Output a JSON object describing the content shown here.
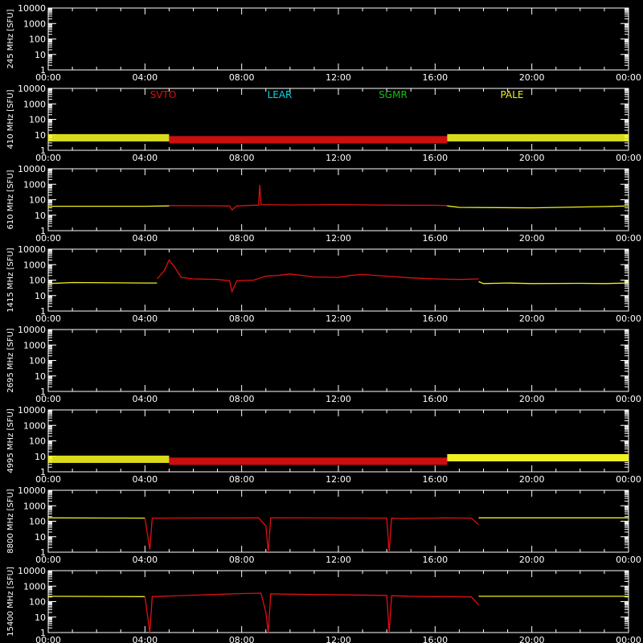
{
  "colors": {
    "background": "#000000",
    "axes": "#ffffff",
    "svto": "#e01010",
    "lear": "#00d8e0",
    "sgmr": "#10c010",
    "pale": "#f0f020"
  },
  "chart_data": {
    "type": "line",
    "time_ticks": [
      "00:00",
      "04:00",
      "08:00",
      "12:00",
      "16:00",
      "20:00",
      "00:00"
    ],
    "x_range_hours": [
      0,
      24
    ],
    "y_scale": "log",
    "y_range": [
      1,
      10000
    ],
    "y_ticks": [
      "1",
      "10",
      "100",
      "1000",
      "10000"
    ],
    "station_legend": [
      {
        "name": "SVTO",
        "color": "#e01010"
      },
      {
        "name": "LEAR",
        "color": "#00d8e0"
      },
      {
        "name": "SGMR",
        "color": "#10c010"
      },
      {
        "name": "PALE",
        "color": "#f0f020"
      }
    ],
    "panels": [
      {
        "ylabel": "245 MHz [SFU]",
        "series": []
      },
      {
        "ylabel": "410 MHz [SFU]",
        "series": [
          {
            "station": "PALE",
            "band": true,
            "points": [
              [
                0,
                4
              ],
              [
                5,
                4
              ]
            ]
          },
          {
            "station": "SVTO",
            "band": true,
            "points": [
              [
                5,
                3
              ],
              [
                16.5,
                3
              ]
            ]
          },
          {
            "station": "PALE",
            "band": true,
            "points": [
              [
                16.5,
                4
              ],
              [
                24,
                4
              ]
            ]
          }
        ]
      },
      {
        "ylabel": "610 MHz [SFU]",
        "series": [
          {
            "station": "PALE",
            "points": [
              [
                0,
                38
              ],
              [
                4,
                38
              ],
              [
                5,
                40
              ]
            ]
          },
          {
            "station": "SVTO",
            "points": [
              [
                5,
                42
              ],
              [
                7.5,
                40
              ],
              [
                7.6,
                22
              ],
              [
                7.8,
                40
              ],
              [
                8.7,
                45
              ],
              [
                8.75,
                900
              ],
              [
                8.8,
                48
              ],
              [
                10,
                46
              ],
              [
                12,
                48
              ],
              [
                14,
                45
              ],
              [
                16,
                44
              ],
              [
                16.5,
                42
              ]
            ]
          },
          {
            "station": "PALE",
            "points": [
              [
                16.5,
                40
              ],
              [
                17,
                32
              ],
              [
                20,
                30
              ],
              [
                23,
                36
              ],
              [
                24,
                40
              ]
            ]
          }
        ]
      },
      {
        "ylabel": "1415 MHz [SFU]",
        "series": [
          {
            "station": "PALE",
            "points": [
              [
                0,
                60
              ],
              [
                1,
                70
              ],
              [
                4,
                65
              ],
              [
                4.5,
                65
              ]
            ]
          },
          {
            "station": "SVTO",
            "points": [
              [
                4.5,
                120
              ],
              [
                4.8,
                400
              ],
              [
                5,
                2000
              ],
              [
                5.2,
                800
              ],
              [
                5.5,
                150
              ],
              [
                6,
                120
              ],
              [
                7,
                110
              ],
              [
                7.5,
                90
              ],
              [
                7.6,
                18
              ],
              [
                7.8,
                90
              ],
              [
                8.5,
                100
              ],
              [
                9,
                180
              ],
              [
                9.5,
                200
              ],
              [
                10,
                250
              ],
              [
                11,
                160
              ],
              [
                12,
                150
              ],
              [
                12.5,
                200
              ],
              [
                13,
                230
              ],
              [
                14,
                180
              ],
              [
                15,
                140
              ],
              [
                16,
                120
              ],
              [
                17,
                110
              ],
              [
                17.8,
                120
              ]
            ]
          },
          {
            "station": "PALE",
            "points": [
              [
                17.8,
                80
              ],
              [
                18,
                60
              ],
              [
                19,
                65
              ],
              [
                20,
                60
              ],
              [
                22,
                62
              ],
              [
                23,
                60
              ],
              [
                24,
                65
              ]
            ]
          }
        ]
      },
      {
        "ylabel": "2695 MHz [SFU]",
        "series": []
      },
      {
        "ylabel": "4995 MHz [SFU]",
        "series": [
          {
            "station": "PALE",
            "band": true,
            "points": [
              [
                0,
                4
              ],
              [
                5,
                4
              ]
            ]
          },
          {
            "station": "SVTO",
            "band": true,
            "points": [
              [
                5,
                3
              ],
              [
                16.5,
                3
              ]
            ]
          },
          {
            "station": "PALE",
            "band": true,
            "points": [
              [
                16.5,
                5
              ],
              [
                24,
                5
              ]
            ]
          }
        ]
      },
      {
        "ylabel": "8800 MHz [SFU]",
        "series": [
          {
            "station": "PALE",
            "points": [
              [
                0,
                165
              ],
              [
                4,
                160
              ]
            ]
          },
          {
            "station": "SVTO",
            "points": [
              [
                4,
                160
              ],
              [
                4.2,
                1.5
              ],
              [
                4.3,
                160
              ],
              [
                8.7,
                165
              ],
              [
                9,
                50
              ],
              [
                9.1,
                1
              ],
              [
                9.2,
                165
              ],
              [
                14,
                160
              ],
              [
                14.1,
                1
              ],
              [
                14.2,
                160
              ],
              [
                14.5,
                150
              ],
              [
                16,
                160
              ],
              [
                16.3,
                165
              ],
              [
                17.5,
                160
              ],
              [
                17.8,
                60
              ]
            ]
          },
          {
            "station": "PALE",
            "points": [
              [
                17.8,
                165
              ],
              [
                24,
                165
              ]
            ]
          }
        ]
      },
      {
        "ylabel": "15400 MHz [SFU]",
        "series": [
          {
            "station": "PALE",
            "points": [
              [
                0,
                220
              ],
              [
                4,
                210
              ]
            ]
          },
          {
            "station": "SVTO",
            "points": [
              [
                4,
                210
              ],
              [
                4.2,
                1
              ],
              [
                4.3,
                210
              ],
              [
                5,
                230
              ],
              [
                6,
                260
              ],
              [
                8,
                330
              ],
              [
                8.8,
                350
              ],
              [
                9,
                20
              ],
              [
                9.1,
                1
              ],
              [
                9.2,
                320
              ],
              [
                10,
                300
              ],
              [
                14,
                250
              ],
              [
                14.1,
                1
              ],
              [
                14.2,
                240
              ],
              [
                15,
                220
              ],
              [
                16,
                210
              ],
              [
                16.3,
                215
              ],
              [
                17.5,
                200
              ],
              [
                17.8,
                60
              ]
            ]
          },
          {
            "station": "PALE",
            "points": [
              [
                17.8,
                220
              ],
              [
                24,
                220
              ]
            ]
          }
        ]
      }
    ]
  }
}
